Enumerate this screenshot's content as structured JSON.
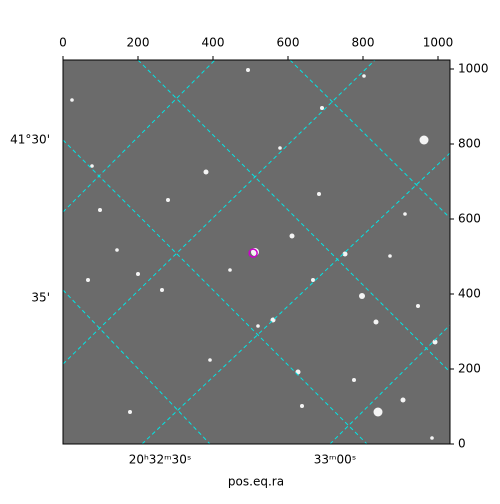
{
  "chart_data": {
    "type": "image",
    "xlabel": "pos.eq.ra",
    "xlim": [
      0,
      1032
    ],
    "ylim": [
      0,
      1024
    ],
    "xticks": [
      0,
      200,
      400,
      600,
      800,
      1000
    ],
    "yticks": [
      0,
      200,
      400,
      600,
      800,
      1000
    ],
    "ra_ticks": [
      "20ʰ32ᵐ30ˢ",
      "33ᵐ00ˢ"
    ],
    "dec_ticks": [
      "41°30'",
      "35'"
    ],
    "grid": true,
    "grid_color": "#00e5e5",
    "marker": {
      "x": 507,
      "y": 509,
      "color": "#cc00cc"
    }
  }
}
